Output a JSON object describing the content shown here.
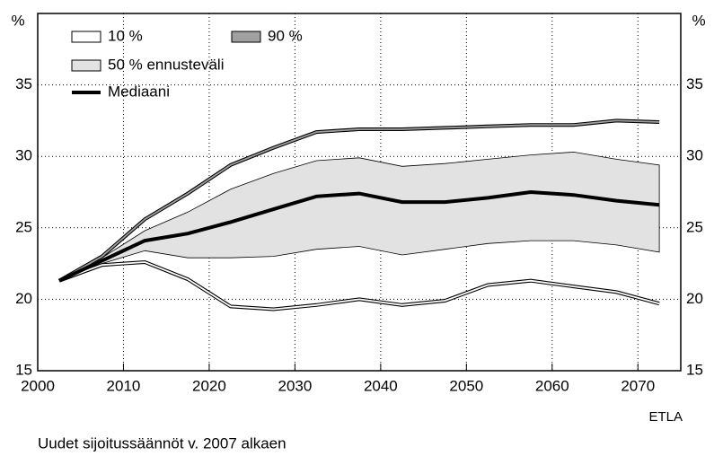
{
  "chart_data": {
    "type": "line",
    "x": [
      2002.5,
      2007.5,
      2012.5,
      2017.5,
      2022.5,
      2027.5,
      2032.5,
      2037.5,
      2042.5,
      2047.5,
      2052.5,
      2057.5,
      2062.5,
      2067.5,
      2072.5
    ],
    "series": [
      {
        "name": "10 %",
        "color": "#ffffff",
        "values": [
          21.3,
          22.4,
          22.6,
          21.4,
          19.5,
          19.3,
          19.6,
          20.0,
          19.6,
          19.9,
          21.0,
          21.3,
          20.9,
          20.5,
          19.7
        ]
      },
      {
        "name": "90 %",
        "color": "#a0a0a0",
        "values": [
          21.3,
          23.0,
          25.6,
          27.4,
          29.4,
          30.6,
          31.7,
          31.9,
          31.9,
          32.0,
          32.1,
          32.2,
          32.2,
          32.5,
          32.4
        ]
      },
      {
        "name": "50 % ennusteväli",
        "color": "#e2e2e2",
        "lower": [
          21.3,
          22.5,
          23.4,
          22.9,
          22.9,
          23.0,
          23.5,
          23.7,
          23.1,
          23.5,
          23.9,
          24.1,
          24.1,
          23.8,
          23.3
        ],
        "upper": [
          21.3,
          22.9,
          24.8,
          26.1,
          27.7,
          28.8,
          29.7,
          29.9,
          29.3,
          29.5,
          29.8,
          30.1,
          30.3,
          29.8,
          29.4
        ]
      },
      {
        "name": "Mediaani",
        "color": "#000000",
        "values": [
          21.3,
          22.7,
          24.1,
          24.6,
          25.4,
          26.3,
          27.2,
          27.4,
          26.8,
          26.8,
          27.1,
          27.5,
          27.3,
          26.9,
          26.6
        ]
      }
    ],
    "xlim": [
      2000,
      2075
    ],
    "xticks": [
      2000,
      2010,
      2020,
      2030,
      2040,
      2050,
      2060,
      2070
    ],
    "ylim": [
      15,
      40
    ],
    "yticks": [
      15,
      20,
      25,
      30,
      35
    ],
    "y_unit": "%",
    "grid": true,
    "footnote": "Uudet sijoitussäännöt v. 2007 alkaen",
    "source": "ETLA"
  }
}
